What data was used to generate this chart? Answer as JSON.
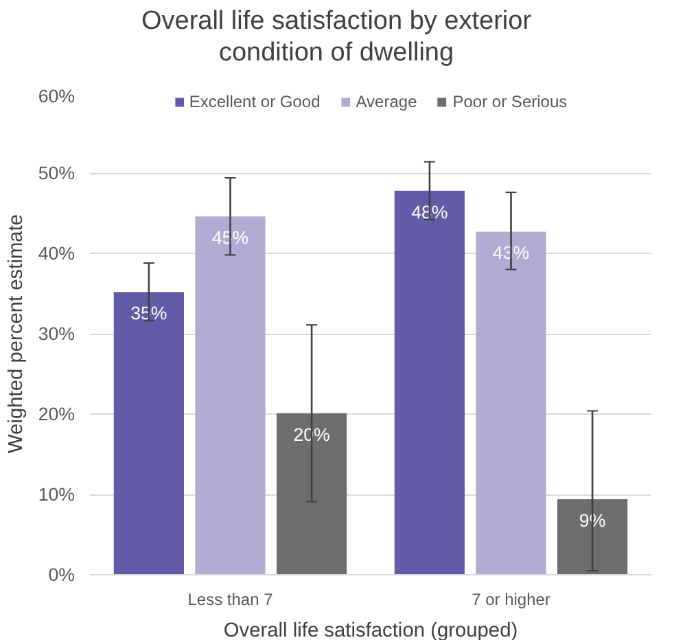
{
  "chart_data": {
    "type": "bar",
    "title": "Overall life satisfaction by exterior condition of dwelling",
    "xlabel": "Overall life satisfaction (grouped)",
    "ylabel": "Weighted percent estimate",
    "categories": [
      "Less than 7",
      "7 or higher"
    ],
    "series": [
      {
        "name": "Excellent or Good",
        "color": "#635ba8",
        "values": [
          35.2,
          47.8
        ],
        "errors": [
          [
            31.6,
            38.8
          ],
          [
            44.2,
            51.4
          ]
        ],
        "value_labels": [
          "35%",
          "48%"
        ]
      },
      {
        "name": "Average",
        "color": "#b1acd3",
        "values": [
          44.6,
          42.7
        ],
        "errors": [
          [
            39.8,
            49.4
          ],
          [
            38.0,
            47.6
          ]
        ],
        "value_labels": [
          "45%",
          "43%"
        ]
      },
      {
        "name": "Poor or Serious",
        "color": "#6d6d6d",
        "values": [
          20.1,
          9.4
        ],
        "errors": [
          [
            9.1,
            31.1
          ],
          [
            0.5,
            20.4
          ]
        ],
        "value_labels": [
          "20%",
          "9%"
        ]
      }
    ],
    "ylim": [
      0,
      60
    ],
    "yticks": [
      {
        "value": 0,
        "label": "0%"
      },
      {
        "value": 10,
        "label": "10%"
      },
      {
        "value": 20,
        "label": "20%"
      },
      {
        "value": 30,
        "label": "30%"
      },
      {
        "value": 40,
        "label": "40%"
      },
      {
        "value": 50,
        "label": "50%"
      },
      {
        "value": 60,
        "label": "60%"
      }
    ],
    "grid": "y",
    "legend": "top"
  }
}
